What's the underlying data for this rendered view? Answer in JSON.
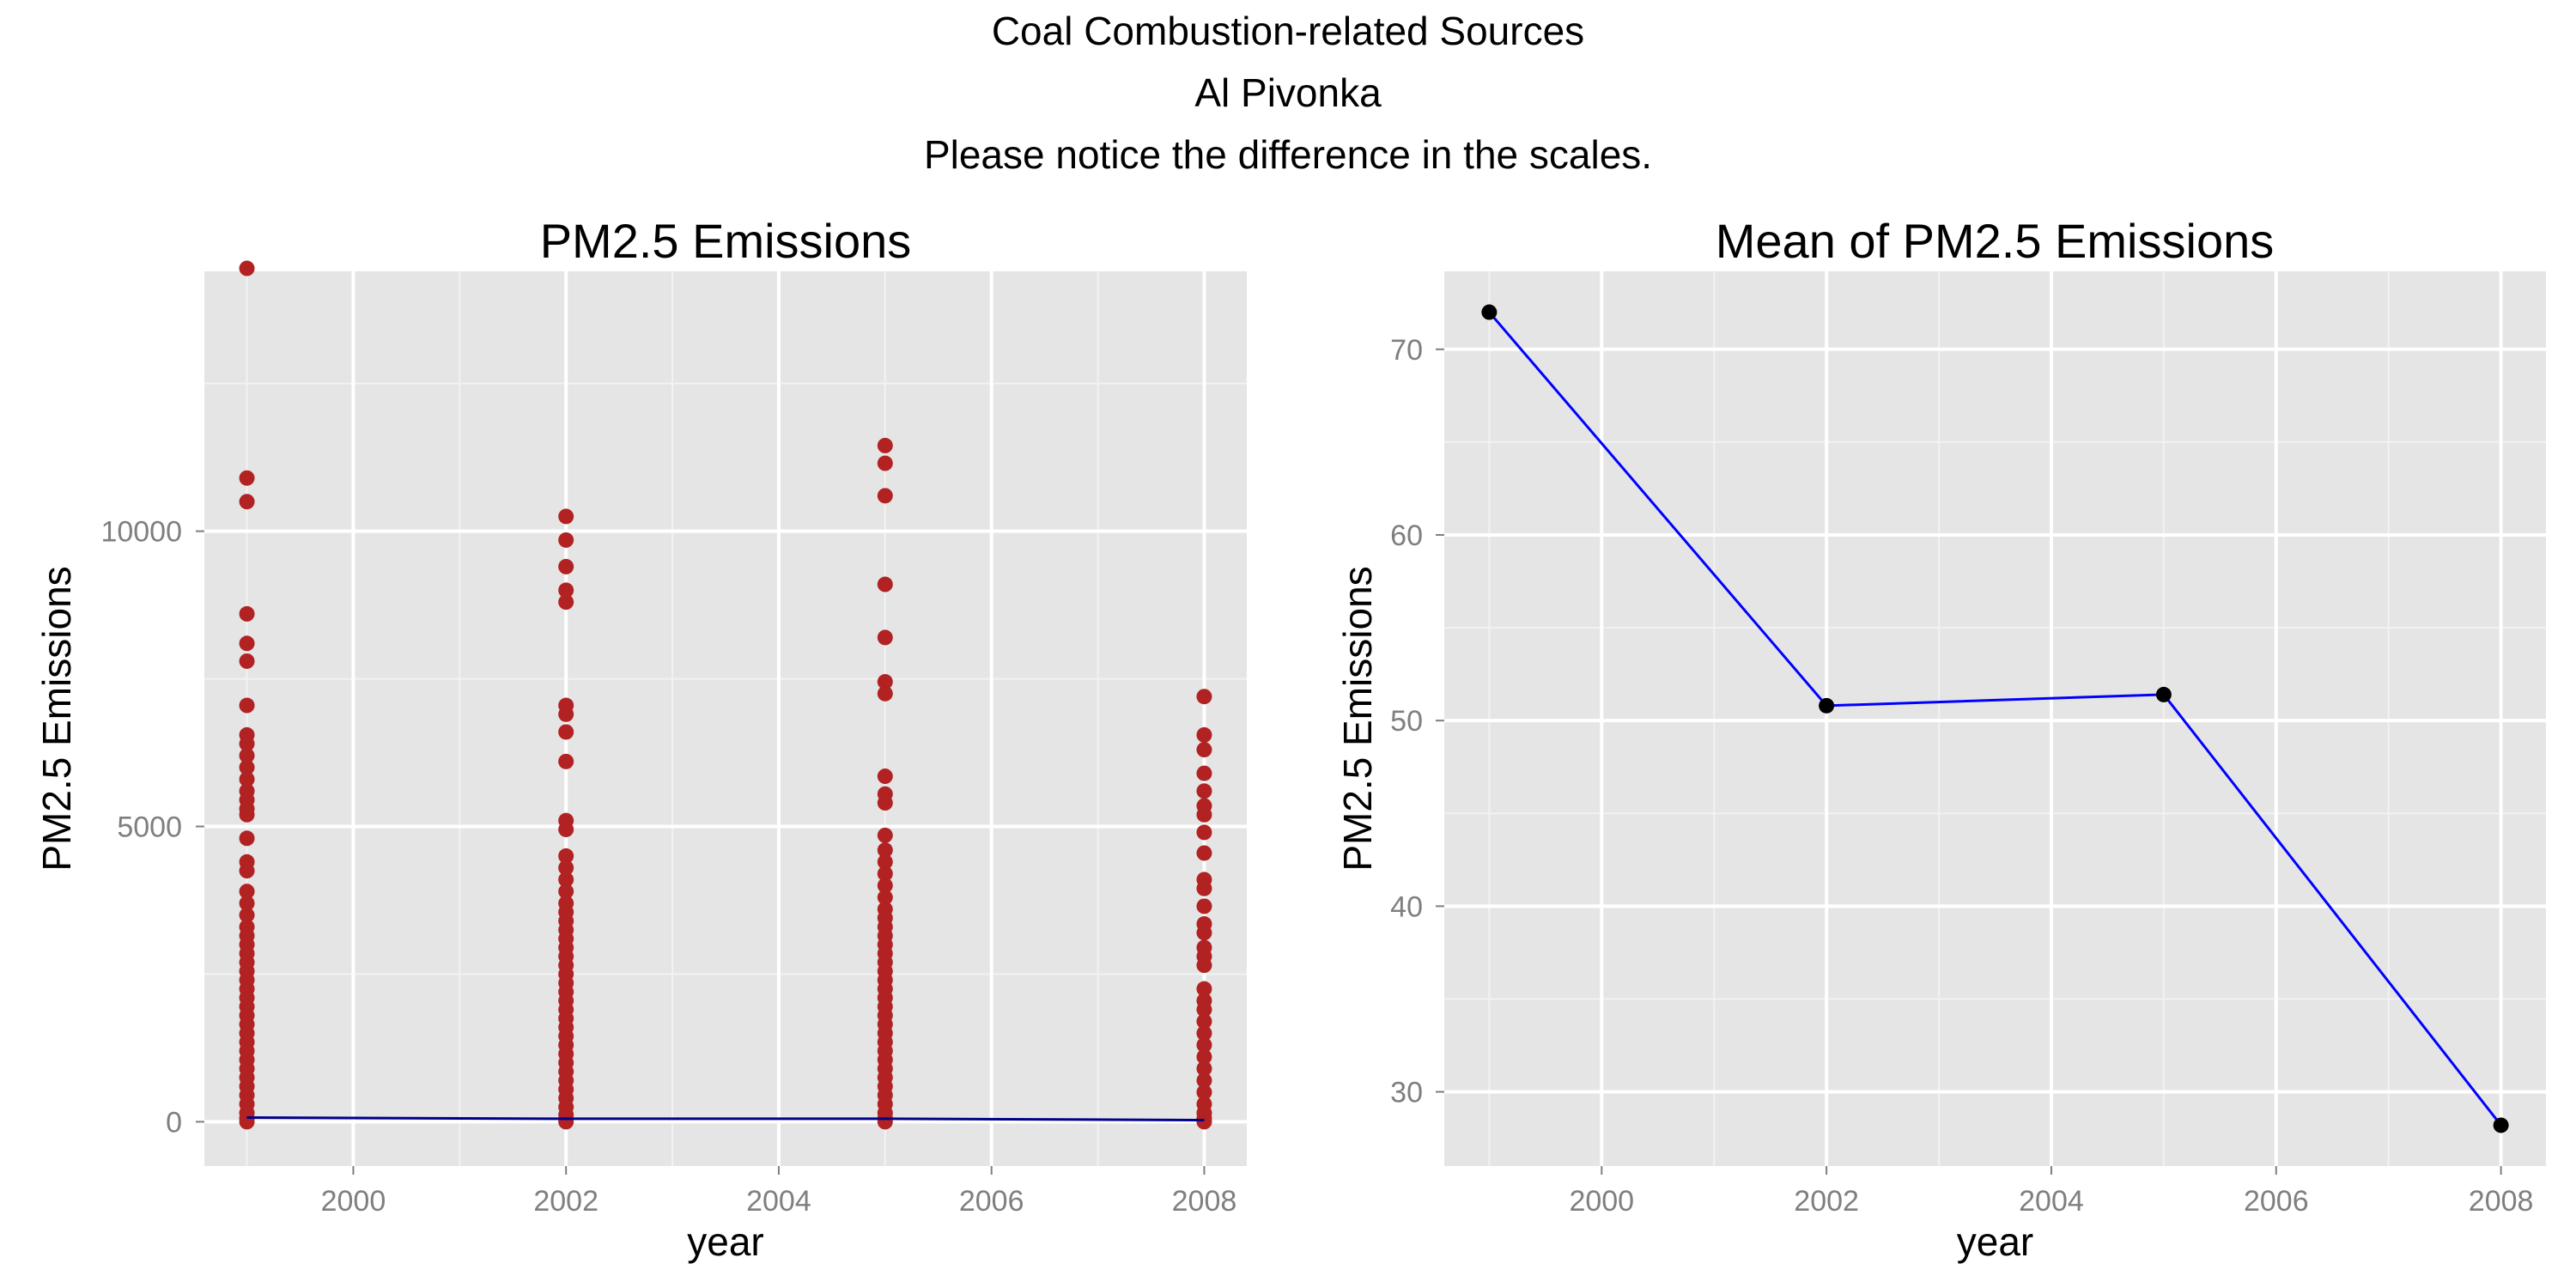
{
  "header": {
    "line1": "Coal Combustion-related Sources",
    "line2": "Al Pivonka",
    "line3": "Please notice the difference in the scales."
  },
  "colors": {
    "panel_bg": "#e5e5e5",
    "grid_major": "#ffffff",
    "grid_minor": "#f2f2f2",
    "point_scatter": "#b22222",
    "line_scatter": "#00008b",
    "point_mean": "#000000",
    "line_mean": "#0000ff",
    "tick_text": "#7f7f7f"
  },
  "chart_data": [
    {
      "type": "scatter",
      "title": "PM2.5 Emissions",
      "xlabel": "year",
      "ylabel": "PM2.5 Emissions",
      "xlim": [
        1998.6,
        2008.4
      ],
      "ylim": [
        -750,
        14400
      ],
      "xticks": [
        2000,
        2002,
        2004,
        2006,
        2008
      ],
      "yticks": [
        0,
        5000,
        10000
      ],
      "grid": true,
      "series": [
        {
          "mode": "points",
          "x": [
            1999,
            2002,
            2005,
            2008
          ],
          "points_by_x": [
            [
              14450,
              10900,
              10500,
              8600,
              8100,
              7800,
              7050,
              6550,
              6400,
              6200,
              6000,
              5800,
              5600,
              5450,
              5300,
              5200,
              4800,
              4400,
              4250,
              3900,
              3700,
              3500,
              3300,
              3150,
              3000,
              2850,
              2700,
              2550,
              2400,
              2250,
              2100,
              1950,
              1800,
              1650,
              1500,
              1350,
              1200,
              1050,
              900,
              750,
              600,
              450,
              300,
              150,
              60,
              0
            ],
            [
              10250,
              9850,
              9400,
              9000,
              8800,
              7050,
              6900,
              6600,
              6100,
              5100,
              4950,
              4500,
              4300,
              4100,
              3900,
              3700,
              3550,
              3400,
              3250,
              3100,
              2950,
              2800,
              2650,
              2500,
              2350,
              2200,
              2050,
              1900,
              1750,
              1600,
              1450,
              1300,
              1150,
              1000,
              850,
              700,
              550,
              400,
              250,
              120,
              40,
              0
            ],
            [
              11450,
              11150,
              10600,
              9100,
              8200,
              7450,
              7250,
              5850,
              5550,
              5400,
              4850,
              4600,
              4400,
              4200,
              4000,
              3800,
              3600,
              3450,
              3300,
              3150,
              3000,
              2850,
              2700,
              2550,
              2400,
              2250,
              2100,
              1950,
              1800,
              1650,
              1500,
              1350,
              1200,
              1050,
              900,
              750,
              600,
              450,
              300,
              150,
              60,
              0
            ],
            [
              7200,
              6550,
              6300,
              5900,
              5600,
              5350,
              5200,
              4900,
              4550,
              4100,
              3950,
              3650,
              3350,
              3200,
              2950,
              2800,
              2650,
              2250,
              2050,
              1900,
              1700,
              1500,
              1300,
              1100,
              900,
              700,
              500,
              300,
              150,
              60,
              0
            ]
          ]
        },
        {
          "mode": "line",
          "x": [
            1999,
            2002,
            2005,
            2008
          ],
          "y": [
            72,
            51,
            51.5,
            28
          ]
        }
      ]
    },
    {
      "type": "line",
      "title": "Mean of PM2.5 Emissions",
      "xlabel": "year",
      "ylabel": "PM2.5 Emissions",
      "xlim": [
        1998.6,
        2008.4
      ],
      "ylim": [
        26,
        74.2
      ],
      "xticks": [
        2000,
        2002,
        2004,
        2006,
        2008
      ],
      "yticks": [
        30,
        40,
        50,
        60,
        70
      ],
      "grid": true,
      "series": [
        {
          "x": [
            1999,
            2002,
            2005,
            2008
          ],
          "y": [
            72.0,
            50.8,
            51.4,
            28.2
          ]
        }
      ]
    }
  ]
}
